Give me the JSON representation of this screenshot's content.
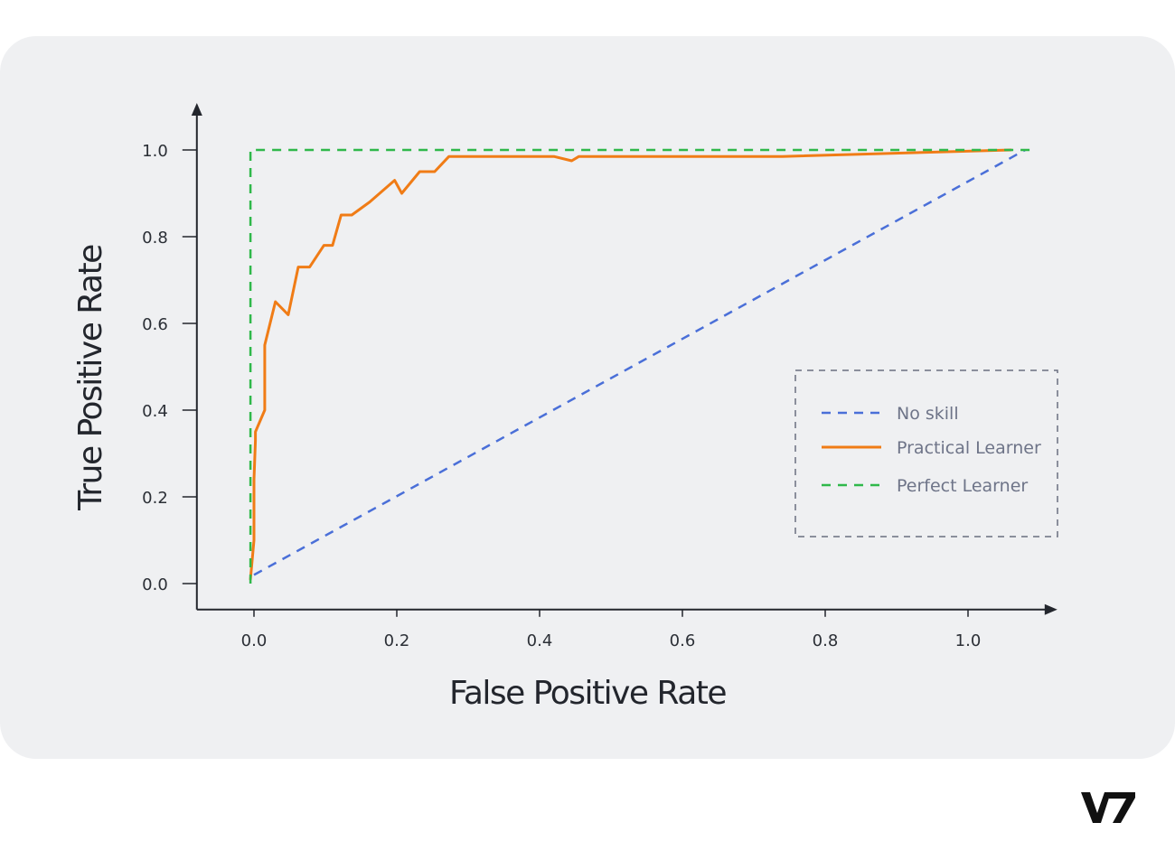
{
  "brand": {
    "logo_text": "V7"
  },
  "chart_data": {
    "type": "line",
    "xlabel": "False Positive Rate",
    "ylabel": "True Positive Rate",
    "xlim": [
      -0.08,
      1.12
    ],
    "ylim": [
      -0.06,
      1.1
    ],
    "x_ticks": [
      "0.0",
      "0.2",
      "0.4",
      "0.6",
      "0.8",
      "1.0"
    ],
    "y_ticks": [
      "0.0",
      "0.2",
      "0.4",
      "0.6",
      "0.8",
      "1.0"
    ],
    "grid": false,
    "legend": "center-right",
    "series": [
      {
        "name": "No skill",
        "style": "dashed",
        "color": "#4a6fd8",
        "x": [
          0.0,
          1.08
        ],
        "y": [
          0.02,
          1.0
        ]
      },
      {
        "name": "Practical Learner",
        "style": "solid",
        "color": "#f07c16",
        "x": [
          -0.005,
          0.0,
          0.0,
          0.002,
          0.002,
          0.015,
          0.015,
          0.03,
          0.048,
          0.062,
          0.078,
          0.098,
          0.11,
          0.122,
          0.137,
          0.162,
          0.197,
          0.207,
          0.232,
          0.253,
          0.273,
          0.42,
          0.445,
          0.455,
          0.74,
          1.06
        ],
        "y": [
          0.01,
          0.1,
          0.24,
          0.33,
          0.35,
          0.4,
          0.55,
          0.65,
          0.62,
          0.73,
          0.73,
          0.78,
          0.78,
          0.85,
          0.85,
          0.88,
          0.93,
          0.9,
          0.95,
          0.95,
          0.985,
          0.985,
          0.975,
          0.985,
          0.985,
          1.0
        ]
      },
      {
        "name": "Perfect Learner",
        "style": "dashed",
        "color": "#2fb84a",
        "x": [
          -0.005,
          -0.005,
          1.09
        ],
        "y": [
          0.0,
          1.0,
          1.0
        ]
      }
    ]
  }
}
